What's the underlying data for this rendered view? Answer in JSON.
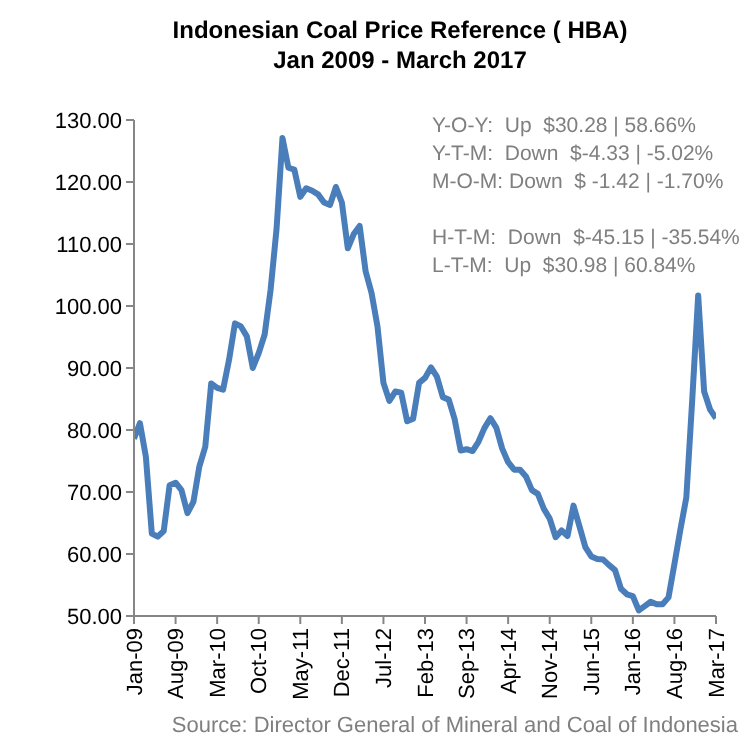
{
  "chart_data": {
    "type": "line",
    "title": "Indonesian Coal Price Reference ( HBA)",
    "subtitle": "Jan 2009 - March 2017",
    "categories": [
      "Jan-09",
      null,
      null,
      null,
      null,
      null,
      null,
      "Aug-09",
      null,
      null,
      null,
      null,
      null,
      null,
      "Mar-10",
      null,
      null,
      null,
      null,
      null,
      null,
      "Oct-10",
      null,
      null,
      null,
      null,
      null,
      null,
      "May-11",
      null,
      null,
      null,
      null,
      null,
      null,
      "Dec-11",
      null,
      null,
      null,
      null,
      null,
      null,
      "Jul-12",
      null,
      null,
      null,
      null,
      null,
      null,
      "Feb-13",
      null,
      null,
      null,
      null,
      null,
      null,
      "Sep-13",
      null,
      null,
      null,
      null,
      null,
      null,
      "Apr-14",
      null,
      null,
      null,
      null,
      null,
      null,
      "Nov-14",
      null,
      null,
      null,
      null,
      null,
      null,
      "Jun-15",
      null,
      null,
      null,
      null,
      null,
      null,
      "Jan-16",
      null,
      null,
      null,
      null,
      null,
      null,
      "Aug-16",
      null,
      null,
      null,
      null,
      null,
      null,
      "Mar-17"
    ],
    "series": [
      {
        "color": "#4a7ebb",
        "values": [
          78.6,
          81.1,
          75.7,
          63.3,
          62.8,
          63.7,
          71.1,
          71.5,
          70.3,
          66.6,
          68.4,
          74.1,
          77.3,
          87.5,
          86.8,
          86.5,
          91.3,
          97.2,
          96.7,
          95.1,
          90.0,
          92.4,
          95.4,
          102.6,
          112.4,
          127.1,
          122.3,
          122.0,
          117.6,
          119.0,
          118.6,
          118.0,
          116.7,
          116.3,
          119.2,
          116.7,
          109.3,
          111.6,
          112.9,
          105.6,
          102.1,
          96.7,
          87.6,
          84.7,
          86.2,
          86.0,
          81.4,
          81.8,
          87.6,
          88.4,
          90.1,
          88.6,
          85.3,
          84.9,
          81.7,
          76.7,
          76.9,
          76.6,
          78.1,
          80.3,
          81.9,
          80.4,
          77.0,
          74.8,
          73.6,
          73.6,
          72.5,
          70.3,
          69.7,
          67.3,
          65.7,
          62.7,
          63.8,
          62.9,
          67.8,
          64.5,
          61.1,
          59.6,
          59.2,
          59.1,
          58.2,
          57.4,
          54.4,
          53.5,
          53.2,
          50.9,
          51.6,
          52.3,
          51.9,
          51.9,
          53.0,
          58.4,
          63.9,
          69.1,
          84.9,
          101.7,
          86.2,
          83.3,
          81.9
        ]
      }
    ],
    "ylim": [
      50,
      130
    ],
    "yticks": [
      {
        "value": 50,
        "label": "50.00"
      },
      {
        "value": 60,
        "label": "60.00"
      },
      {
        "value": 70,
        "label": "70.00"
      },
      {
        "value": 80,
        "label": "80.00"
      },
      {
        "value": 90,
        "label": "90.00"
      },
      {
        "value": 100,
        "label": "100.00"
      },
      {
        "value": 110,
        "label": "110.00"
      },
      {
        "value": 120,
        "label": "120.00"
      },
      {
        "value": 130,
        "label": "130.00"
      }
    ],
    "grid": false,
    "legend": false,
    "marker": "none",
    "line_style": "solid",
    "annotations": [
      "Y-O-Y:  Up  $30.28 | 58.66%",
      "Y-T-M:  Down  $-4.33 | -5.02%",
      "M-O-M: Down  $ -1.42 | -1.70%",
      "H-T-M:  Down  $-45.15 | -35.54%",
      "L-T-M:  Up  $30.98 | 60.84%",
      "Source: Director General of Mineral and Coal of Indonesia"
    ]
  }
}
